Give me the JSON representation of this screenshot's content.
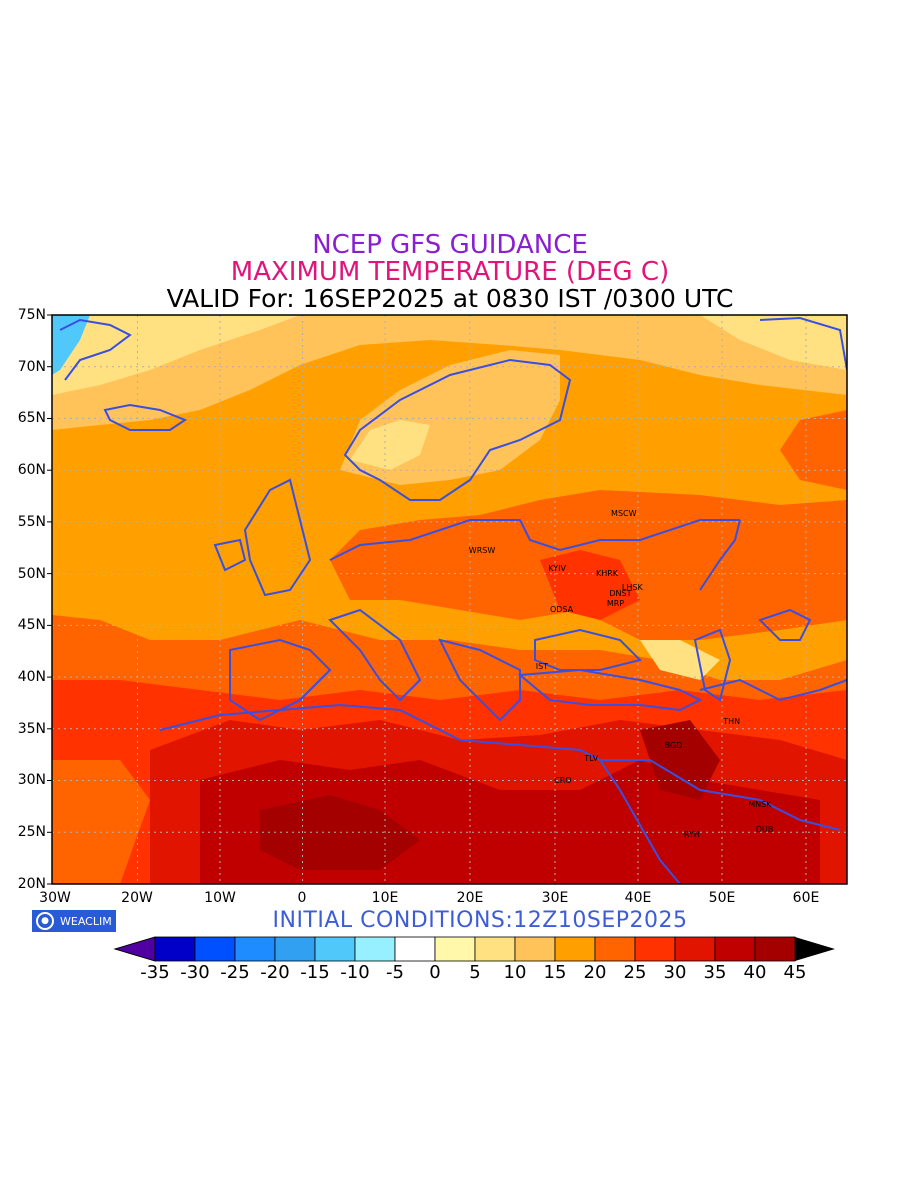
{
  "titles": {
    "line1": "NCEP GFS GUIDANCE",
    "line2": "MAXIMUM TEMPERATURE (DEG C)",
    "line3": "VALID For: 16SEP2025 at 0830 IST /0300 UTC"
  },
  "lat_labels": [
    "75N",
    "70N",
    "65N",
    "60N",
    "55N",
    "50N",
    "45N",
    "40N",
    "35N",
    "30N",
    "25N",
    "20N"
  ],
  "lon_labels": [
    "30W",
    "20W",
    "10W",
    "0",
    "10E",
    "20E",
    "30E",
    "40E",
    "50E",
    "60E"
  ],
  "cities": [
    {
      "name": "MSCW",
      "lon": 38,
      "lat": 55.8
    },
    {
      "name": "WRSW",
      "lon": 21,
      "lat": 52.2
    },
    {
      "name": "KYIV",
      "lon": 30.5,
      "lat": 50.4
    },
    {
      "name": "KHRK",
      "lon": 36.2,
      "lat": 50.0
    },
    {
      "name": "LHSK",
      "lon": 39.3,
      "lat": 48.6
    },
    {
      "name": "DNST",
      "lon": 37.8,
      "lat": 48.0
    },
    {
      "name": "MRP",
      "lon": 37.5,
      "lat": 47.1
    },
    {
      "name": "ODSA",
      "lon": 30.7,
      "lat": 46.5
    },
    {
      "name": "IST",
      "lon": 29.0,
      "lat": 41.0
    },
    {
      "name": "THN",
      "lon": 51.4,
      "lat": 35.7
    },
    {
      "name": "BGD",
      "lon": 44.4,
      "lat": 33.3
    },
    {
      "name": "TLV",
      "lon": 34.8,
      "lat": 32.1
    },
    {
      "name": "CRO",
      "lon": 31.2,
      "lat": 30.0
    },
    {
      "name": "MNSK",
      "lon": 54.4,
      "lat": 27.6
    },
    {
      "name": "DUB",
      "lon": 55.3,
      "lat": 25.2
    },
    {
      "name": "RYH",
      "lon": 46.7,
      "lat": 24.7
    }
  ],
  "logo_text": "WEACLIM",
  "initial_conditions": "INITIAL CONDITIONS:12Z10SEP2025",
  "colorbar": {
    "colors": [
      "#0000c8",
      "#0050ff",
      "#1e8cff",
      "#32a0f0",
      "#50c8fa",
      "#96f0ff",
      "#ffffff",
      "#fff8aa",
      "#ffe182",
      "#ffc35a",
      "#ffa000",
      "#ff6400",
      "#ff3200",
      "#e11400",
      "#c00000",
      "#a50000"
    ],
    "labels": [
      "-35",
      "-30",
      "-25",
      "-20",
      "-15",
      "-10",
      "-5",
      "0",
      "5",
      "10",
      "15",
      "20",
      "25",
      "30",
      "35",
      "40",
      "45"
    ],
    "under_color": "#5000a0",
    "over_color": "#000000"
  },
  "colors": {
    "land_outline": "#3a4fe0",
    "grid": "#b0b0b0"
  }
}
